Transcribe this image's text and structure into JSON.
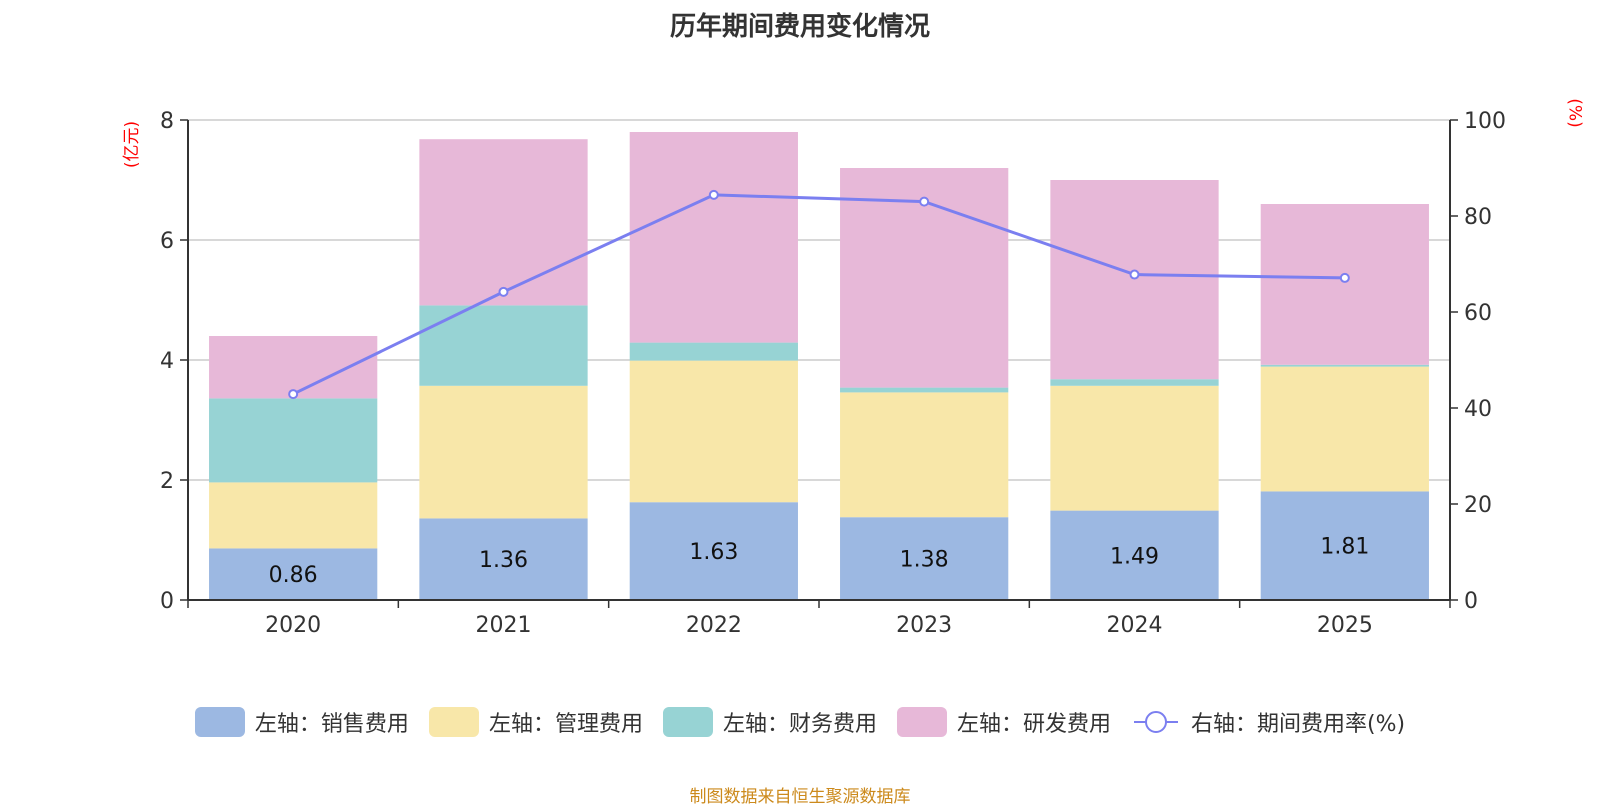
{
  "title": "历年期间费用变化情况",
  "source": "制图数据来自恒生聚源数据库",
  "chart_data": {
    "type": "bar",
    "stacked": true,
    "title": "历年期间费用变化情况",
    "categories": [
      "2020",
      "2021",
      "2022",
      "2023",
      "2024",
      "2025"
    ],
    "left_axis": {
      "unit": "(亿元)",
      "range": [
        0,
        8
      ],
      "ticks": [
        0,
        2,
        4,
        6,
        8
      ]
    },
    "right_axis": {
      "unit": "(%)",
      "range": [
        0,
        100
      ],
      "ticks": [
        0,
        20,
        40,
        60,
        80,
        100
      ]
    },
    "grid": true,
    "legend_position": "bottom",
    "series": [
      {
        "name": "左轴：销售费用",
        "axis": "left",
        "type": "bar",
        "color": "#9cb8e2",
        "values": [
          0.86,
          1.36,
          1.63,
          1.38,
          1.49,
          1.81
        ],
        "labels": [
          "0.86",
          "1.36",
          "1.63",
          "1.38",
          "1.49",
          "1.81"
        ]
      },
      {
        "name": "左轴：管理费用",
        "axis": "left",
        "type": "bar",
        "color": "#f8e7a9",
        "values": [
          1.1,
          2.21,
          2.36,
          2.08,
          2.08,
          2.08
        ]
      },
      {
        "name": "左轴：财务费用",
        "axis": "left",
        "type": "bar",
        "color": "#97d3d4",
        "values": [
          1.4,
          1.34,
          0.3,
          0.08,
          0.11,
          0.03
        ]
      },
      {
        "name": "左轴：研发费用",
        "axis": "left",
        "type": "bar",
        "color": "#e7b8d8",
        "values": [
          1.04,
          2.77,
          3.51,
          3.66,
          3.32,
          2.68
        ]
      },
      {
        "name": "右轴：期间费用率(%)",
        "axis": "right",
        "type": "line",
        "color": "#7b7ff0",
        "values": [
          42.9,
          64.2,
          84.4,
          83.0,
          67.8,
          67.1
        ]
      }
    ]
  }
}
